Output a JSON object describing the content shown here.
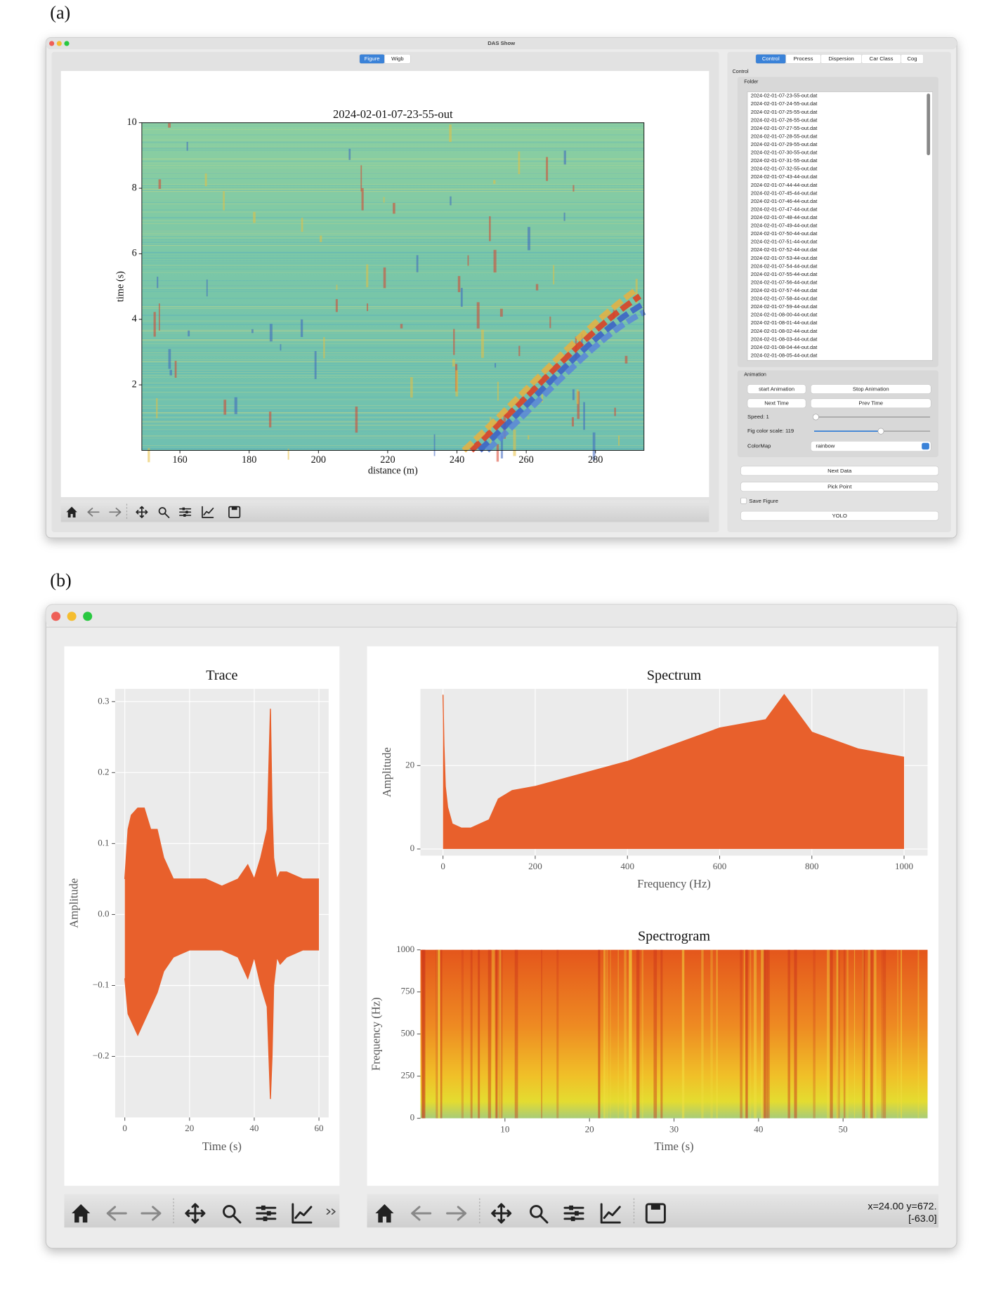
{
  "panel_a": {
    "label": "(a)",
    "window_title": "DAS Show",
    "view_tabs": [
      "Figure",
      "Wigb"
    ],
    "control_tabs": [
      "Control",
      "Process",
      "Dispersion",
      "Car Class",
      "Cog"
    ],
    "control_heading": "Control",
    "folder_heading": "Folder",
    "files": [
      "2024-02-01-07-23-55-out.dat",
      "2024-02-01-07-24-55-out.dat",
      "2024-02-01-07-25-55-out.dat",
      "2024-02-01-07-26-55-out.dat",
      "2024-02-01-07-27-55-out.dat",
      "2024-02-01-07-28-55-out.dat",
      "2024-02-01-07-29-55-out.dat",
      "2024-02-01-07-30-55-out.dat",
      "2024-02-01-07-31-55-out.dat",
      "2024-02-01-07-32-55-out.dat",
      "2024-02-01-07-43-44-out.dat",
      "2024-02-01-07-44-44-out.dat",
      "2024-02-01-07-45-44-out.dat",
      "2024-02-01-07-46-44-out.dat",
      "2024-02-01-07-47-44-out.dat",
      "2024-02-01-07-48-44-out.dat",
      "2024-02-01-07-49-44-out.dat",
      "2024-02-01-07-50-44-out.dat",
      "2024-02-01-07-51-44-out.dat",
      "2024-02-01-07-52-44-out.dat",
      "2024-02-01-07-53-44-out.dat",
      "2024-02-01-07-54-44-out.dat",
      "2024-02-01-07-55-44-out.dat",
      "2024-02-01-07-56-44-out.dat",
      "2024-02-01-07-57-44-out.dat",
      "2024-02-01-07-58-44-out.dat",
      "2024-02-01-07-59-44-out.dat",
      "2024-02-01-08-00-44-out.dat",
      "2024-02-01-08-01-44-out.dat",
      "2024-02-01-08-02-44-out.dat",
      "2024-02-01-08-03-44-out.dat",
      "2024-02-01-08-04-44-out.dat",
      "2024-02-01-08-05-44-out.dat"
    ],
    "animation_heading": "Animation",
    "buttons": {
      "start": "start Animation",
      "stop": "Stop Animation",
      "next_time": "Next Time",
      "prev_time": "Prev Time",
      "next_data": "Next Data",
      "pick_point": "Pick Point",
      "yolo": "YOLO"
    },
    "speed": "Speed: 1",
    "color_scale": "Fig color scale: 119",
    "colormap_label": "ColorMap",
    "colormap": "rainbow",
    "save_figure": "Save Figure"
  },
  "panel_b": {
    "label": "(b)",
    "readout": [
      "x=24.00 y=672.",
      "[-63.0]"
    ]
  },
  "chart_data": [
    {
      "type": "heatmap",
      "title": "2024-02-01-07-23-55-out",
      "x_label": "distance (m)",
      "y_label": "time (s)",
      "xlim": [
        149,
        294
      ],
      "xticks": [
        160,
        180,
        200,
        220,
        240,
        260,
        280
      ],
      "ylim": [
        0,
        10
      ],
      "yticks": [
        2,
        4,
        6,
        8,
        10
      ]
    },
    {
      "type": "area",
      "title": "Trace",
      "x_label": "Time (s)",
      "y_label": "Amplitude",
      "grid": true,
      "xlim": [
        -3,
        63
      ],
      "xticks": [
        0,
        20,
        40,
        60
      ],
      "ylim": [
        -0.286,
        0.318
      ],
      "yticks": [
        {
          "value": -0.2,
          "label": "−0.2"
        },
        {
          "value": -0.1,
          "label": "−0.1"
        },
        {
          "value": 0,
          "label": "0.0"
        },
        0.1,
        0.2,
        0.3
      ],
      "x": [
        0,
        1,
        2,
        4,
        6,
        8,
        10,
        12,
        15,
        20,
        25,
        30,
        35,
        38,
        40,
        42,
        44,
        45,
        45.5,
        46,
        47,
        48,
        50,
        55,
        60
      ],
      "series": [
        {
          "color": "#e8602c",
          "values": [
            0.05,
            0.12,
            0.14,
            0.15,
            0.15,
            0.12,
            0.12,
            0.08,
            0.05,
            0.05,
            0.05,
            0.04,
            0.05,
            0.07,
            0.05,
            0.08,
            0.12,
            0.29,
            0.15,
            0.08,
            0.05,
            0.06,
            0.06,
            0.05,
            0.05
          ]
        },
        {
          "color": "#e8602c",
          "values": [
            -0.09,
            -0.14,
            -0.15,
            -0.17,
            -0.15,
            -0.13,
            -0.11,
            -0.08,
            -0.06,
            -0.05,
            -0.05,
            -0.05,
            -0.06,
            -0.09,
            -0.06,
            -0.1,
            -0.13,
            -0.26,
            -0.2,
            -0.1,
            -0.06,
            -0.07,
            -0.06,
            -0.05,
            -0.05
          ]
        }
      ]
    },
    {
      "type": "area",
      "title": "Spectrum",
      "x_label": "Frequency (Hz)",
      "y_label": "Amplitude",
      "grid": true,
      "xlim": [
        -49,
        1051
      ],
      "xticks": [
        0,
        200,
        400,
        600,
        800,
        1000
      ],
      "ylim": [
        -1.6,
        38.4
      ],
      "yticks": [
        0,
        20
      ],
      "x": [
        0,
        2,
        5,
        10,
        20,
        40,
        60,
        100,
        120,
        150,
        200,
        300,
        400,
        500,
        600,
        700,
        740,
        800,
        900,
        1000
      ],
      "series": [
        {
          "color": "#e8602c",
          "values": [
            37,
            25,
            15,
            10,
            6,
            5,
            5,
            7,
            12,
            14,
            15,
            18,
            21,
            25,
            29,
            31,
            37,
            28,
            24,
            22
          ]
        }
      ]
    },
    {
      "type": "spectrogram",
      "title": "Spectrogram",
      "x_label": "Time (s)",
      "y_label": "Frequency (Hz)",
      "xlim": [
        0,
        60
      ],
      "xticks": [
        10,
        20,
        30,
        40,
        50
      ],
      "ylim": [
        0,
        1000
      ],
      "yticks": [
        0,
        250,
        500,
        750,
        1000
      ]
    }
  ]
}
